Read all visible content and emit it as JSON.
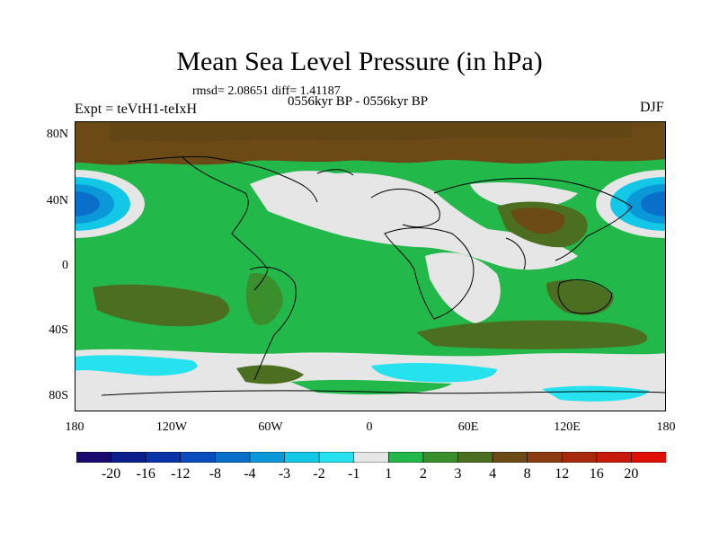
{
  "title": "Mean Sea Level Pressure (in hPa)",
  "stats": "rmsd= 2.08651 diff= 1.41187",
  "period": "0556kyr BP - 0556kyr BP",
  "expt": "Expt = teVtH1-teIxH",
  "season": "DJF",
  "axes": {
    "lat_labels": [
      "80N",
      "40N",
      "0",
      "40S",
      "80S"
    ],
    "lon_labels": [
      "180",
      "120W",
      "60W",
      "0",
      "60E",
      "120E",
      "180"
    ]
  },
  "colorbar": {
    "labels": [
      "-20",
      "-16",
      "-12",
      "-8",
      "-4",
      "-3",
      "-2",
      "-1",
      "1",
      "2",
      "3",
      "4",
      "8",
      "12",
      "16",
      "20"
    ],
    "colors": [
      "#1a0a6e",
      "#0a1f8c",
      "#0a33a8",
      "#0a4bbd",
      "#0a6fc8",
      "#0a98d8",
      "#12c8e6",
      "#26e2ee",
      "#e6e6e6",
      "#22b84a",
      "#3a8f2c",
      "#4c6e20",
      "#6b4a16",
      "#8c3a10",
      "#a82a0c",
      "#c81a0a",
      "#e00f05"
    ]
  },
  "chart_data": {
    "type": "heatmap",
    "title": "Mean Sea Level Pressure (in hPa)",
    "xlim": [
      -180,
      180
    ],
    "ylim": [
      -90,
      90
    ],
    "levels": [
      -20,
      -16,
      -12,
      -8,
      -4,
      -3,
      -2,
      -1,
      1,
      2,
      3,
      4,
      8,
      12,
      16,
      20
    ],
    "regions": [
      {
        "name": "north-polar-high",
        "value": 5
      },
      {
        "name": "north-pacific-low-west",
        "value": -3
      },
      {
        "name": "north-pacific-low-east",
        "value": -3
      },
      {
        "name": "tropical-band",
        "value": 1.5
      },
      {
        "name": "southern-ocean-band",
        "value": -1.5
      },
      {
        "name": "antarctica",
        "value": 0
      }
    ]
  }
}
